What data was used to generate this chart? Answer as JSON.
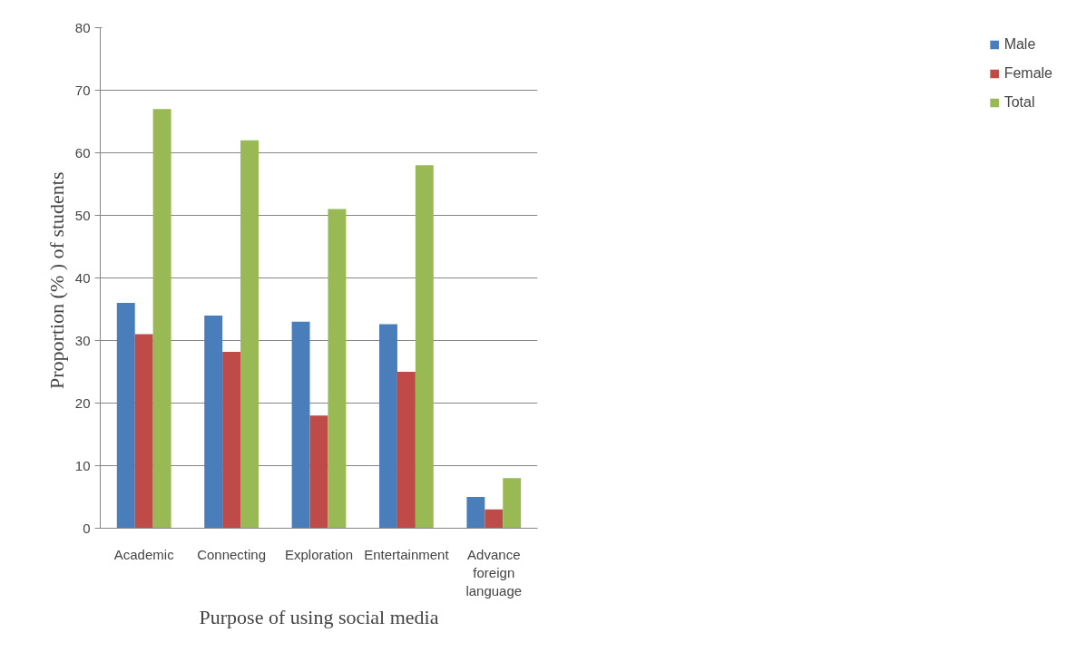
{
  "chart_data": {
    "type": "bar",
    "xlabel": "Purpose of using social media",
    "ylabel": "Proportion (% ) of  students",
    "categories": [
      "Academic",
      "Connecting",
      "Exploration",
      "Entertainment",
      "Advance foreign language"
    ],
    "series": [
      {
        "name": "Male",
        "color": "#4a7ebb",
        "values": [
          36,
          34,
          33,
          32.6,
          5
        ]
      },
      {
        "name": "Female",
        "color": "#be4b48",
        "values": [
          31,
          28.2,
          18,
          25,
          3
        ]
      },
      {
        "name": "Total",
        "color": "#98b954",
        "values": [
          67,
          62,
          51,
          58,
          8
        ]
      }
    ],
    "ylim": [
      0,
      80
    ],
    "yticks": [
      0,
      10,
      20,
      30,
      40,
      50,
      60,
      70,
      80
    ],
    "grid": "y",
    "legend": "right"
  }
}
